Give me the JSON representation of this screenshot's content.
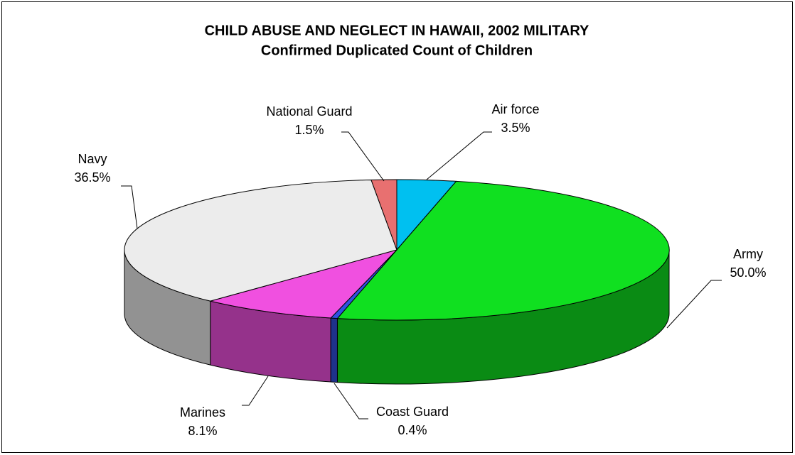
{
  "chart_data": {
    "type": "pie",
    "title": "CHILD ABUSE AND NEGLECT IN HAWAII, 2002 MILITARY",
    "subtitle": "Confirmed Duplicated Count of Children",
    "categories": [
      "Air force",
      "Army",
      "Coast Guard",
      "Marines",
      "Navy",
      "National Guard"
    ],
    "values": [
      3.5,
      50.0,
      0.4,
      8.1,
      36.5,
      1.5
    ],
    "value_labels": [
      "3.5%",
      "50.0%",
      "0.4%",
      "8.1%",
      "36.5%",
      "1.5%"
    ],
    "colors": [
      "#00c0f0",
      "#10e020",
      "#3050e0",
      "#f050e0",
      "#ececec",
      "#e87070"
    ]
  }
}
